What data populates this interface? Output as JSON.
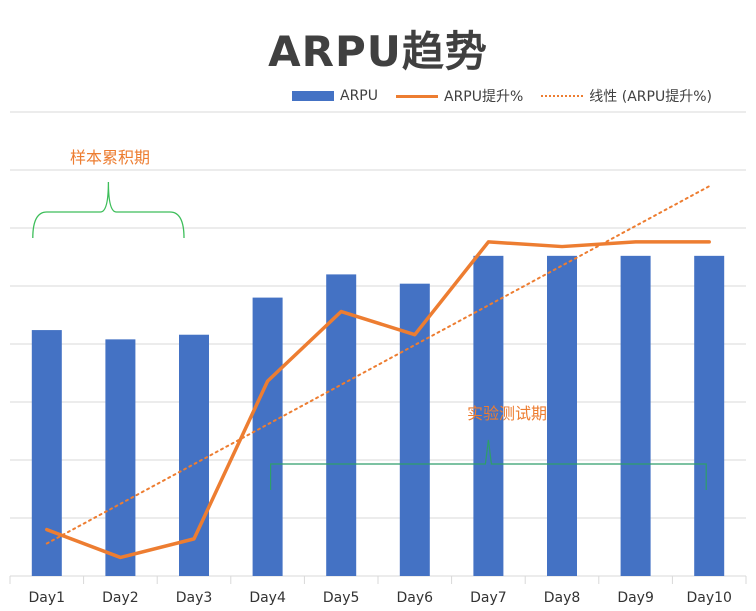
{
  "chart_data": {
    "type": "bar",
    "title": "ARPU趋势",
    "categories": [
      "Day1",
      "Day2",
      "Day3",
      "Day4",
      "Day5",
      "Day6",
      "Day7",
      "Day8",
      "Day9",
      "Day10"
    ],
    "series": [
      {
        "name": "ARPU",
        "type": "bar",
        "values": [
          0.53,
          0.51,
          0.52,
          0.6,
          0.65,
          0.63,
          0.69,
          0.69,
          0.69,
          0.69
        ]
      },
      {
        "name": "ARPU提升%",
        "type": "line",
        "values": [
          0.1,
          0.04,
          0.08,
          0.42,
          0.57,
          0.52,
          0.72,
          0.71,
          0.72,
          0.72
        ]
      },
      {
        "name": "线性 (ARPU提升%)",
        "type": "trendline",
        "values": [
          0.07,
          0.15,
          0.24,
          0.32,
          0.41,
          0.5,
          0.58,
          0.67,
          0.75,
          0.84
        ]
      }
    ],
    "ylim": [
      0,
      1.0
    ],
    "grid": true,
    "legend_position": "top",
    "annotations": [
      "样本累积期",
      "实验测试期"
    ],
    "colors": {
      "bar": "#4472C4",
      "line": "#ED7D31",
      "trend": "#ED7D31",
      "sample_bracket": "#3DBE5A",
      "test_bracket": "#2E9E6A",
      "text": "#404040"
    }
  }
}
